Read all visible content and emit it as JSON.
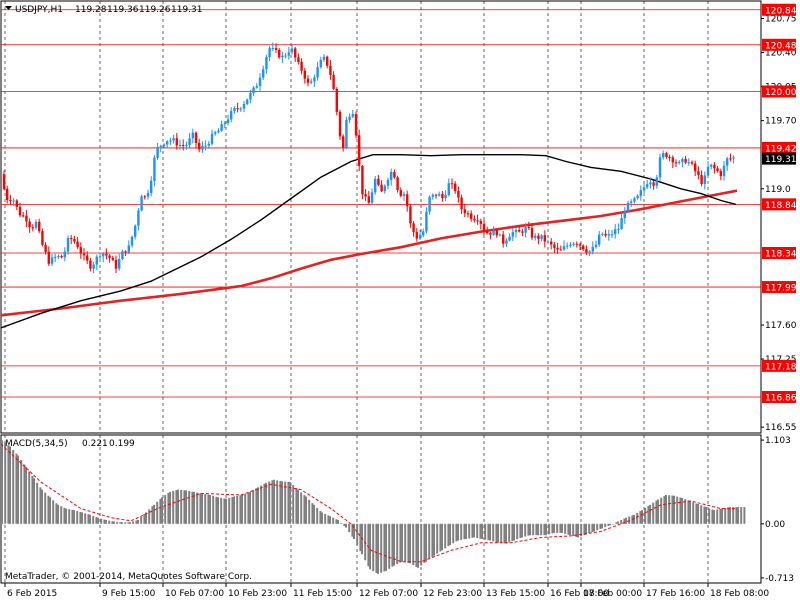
{
  "header": {
    "symbol": "USDJPY,H1",
    "open": "119.28",
    "high": "119.36",
    "low": "119.26",
    "close": "119.31"
  },
  "price_axis": {
    "ticks": [
      "120.75",
      "120.40",
      "120.05",
      "119.70",
      "119.0",
      "117.60",
      "117.25",
      "116.55"
    ],
    "level_labels": [
      "120.84",
      "120.48",
      "120.00",
      "119.42",
      "118.84",
      "118.34",
      "117.99",
      "117.18",
      "116.86"
    ],
    "current_price": "119.31",
    "range": [
      116.49,
      120.93
    ]
  },
  "time_axis": {
    "labels": [
      "6 Feb 2015",
      "9 Feb 15:00",
      "10 Feb 07:00",
      "10 Feb 23:00",
      "11 Feb 15:00",
      "12 Feb 07:00",
      "12 Feb 23:00",
      "13 Feb 15:00",
      "16 Feb 08:00",
      "17 Feb 00:00",
      "17 Feb 16:00",
      "18 Feb 08:00"
    ]
  },
  "indicator": {
    "label": "MACD(5,34,5)",
    "value1": "0.221",
    "value2": "0.199",
    "scale_labels": [
      "1.103",
      "0.00",
      "-0.713"
    ],
    "range": [
      -0.78,
      1.17
    ]
  },
  "copyright": "MetaTrader, © 2001-2014, MetaQuotes Software Corp.",
  "colors": {
    "level": "#ff0000",
    "bull": "#1e90ff",
    "bear": "#ff0000",
    "ma_fast": "#000000",
    "ma_slow": "#e52222",
    "histogram": "#808080",
    "signal": "#ff0000"
  },
  "chart_data": {
    "type": "line",
    "levels": [
      120.84,
      120.48,
      120.0,
      119.42,
      118.84,
      118.34,
      117.99,
      117.18,
      116.86
    ],
    "price_path": [
      [
        0,
        119.15
      ],
      [
        5,
        118.9
      ],
      [
        12,
        118.9
      ],
      [
        18,
        118.75
      ],
      [
        25,
        118.7
      ],
      [
        30,
        118.6
      ],
      [
        35,
        118.65
      ],
      [
        42,
        118.4
      ],
      [
        48,
        118.25
      ],
      [
        55,
        118.3
      ],
      [
        62,
        118.3
      ],
      [
        68,
        118.5
      ],
      [
        75,
        118.45
      ],
      [
        82,
        118.3
      ],
      [
        90,
        118.2
      ],
      [
        100,
        118.35
      ],
      [
        108,
        118.3
      ],
      [
        115,
        118.2
      ],
      [
        122,
        118.35
      ],
      [
        128,
        118.4
      ],
      [
        135,
        118.65
      ],
      [
        140,
        118.95
      ],
      [
        145,
        118.9
      ],
      [
        150,
        119.1
      ],
      [
        155,
        119.4
      ],
      [
        160,
        119.45
      ],
      [
        165,
        119.5
      ],
      [
        172,
        119.5
      ],
      [
        178,
        119.45
      ],
      [
        185,
        119.45
      ],
      [
        192,
        119.55
      ],
      [
        198,
        119.4
      ],
      [
        205,
        119.45
      ],
      [
        212,
        119.55
      ],
      [
        218,
        119.6
      ],
      [
        225,
        119.7
      ],
      [
        232,
        119.8
      ],
      [
        240,
        119.85
      ],
      [
        248,
        119.95
      ],
      [
        255,
        120.05
      ],
      [
        262,
        120.25
      ],
      [
        268,
        120.45
      ],
      [
        275,
        120.4
      ],
      [
        282,
        120.35
      ],
      [
        290,
        120.45
      ],
      [
        296,
        120.3
      ],
      [
        302,
        120.2
      ],
      [
        308,
        120.05
      ],
      [
        315,
        120.2
      ],
      [
        322,
        120.35
      ],
      [
        328,
        120.25
      ],
      [
        334,
        119.95
      ],
      [
        338,
        119.6
      ],
      [
        342,
        119.4
      ],
      [
        346,
        119.75
      ],
      [
        352,
        119.8
      ],
      [
        356,
        119.5
      ],
      [
        360,
        119.0
      ],
      [
        364,
        118.9
      ],
      [
        368,
        118.85
      ],
      [
        374,
        119.1
      ],
      [
        380,
        118.95
      ],
      [
        386,
        119.1
      ],
      [
        392,
        119.2
      ],
      [
        398,
        118.95
      ],
      [
        404,
        118.95
      ],
      [
        410,
        118.6
      ],
      [
        416,
        118.5
      ],
      [
        422,
        118.55
      ],
      [
        428,
        118.9
      ],
      [
        436,
        118.95
      ],
      [
        442,
        118.9
      ],
      [
        448,
        119.05
      ],
      [
        454,
        119.0
      ],
      [
        460,
        118.8
      ],
      [
        466,
        118.75
      ],
      [
        472,
        118.7
      ],
      [
        478,
        118.7
      ],
      [
        484,
        118.55
      ],
      [
        490,
        118.55
      ],
      [
        496,
        118.55
      ],
      [
        502,
        118.45
      ],
      [
        510,
        118.55
      ],
      [
        518,
        118.55
      ],
      [
        526,
        118.6
      ],
      [
        532,
        118.5
      ],
      [
        540,
        118.5
      ],
      [
        546,
        118.45
      ],
      [
        552,
        118.4
      ],
      [
        558,
        118.35
      ],
      [
        564,
        118.4
      ],
      [
        570,
        118.45
      ],
      [
        576,
        118.45
      ],
      [
        582,
        118.4
      ],
      [
        588,
        118.35
      ],
      [
        594,
        118.4
      ],
      [
        600,
        118.55
      ],
      [
        606,
        118.5
      ],
      [
        612,
        118.55
      ],
      [
        618,
        118.6
      ],
      [
        624,
        118.8
      ],
      [
        630,
        118.85
      ],
      [
        636,
        118.9
      ],
      [
        642,
        119.0
      ],
      [
        648,
        119.1
      ],
      [
        654,
        119.05
      ],
      [
        660,
        119.35
      ],
      [
        666,
        119.35
      ],
      [
        672,
        119.3
      ],
      [
        678,
        119.25
      ],
      [
        684,
        119.3
      ],
      [
        690,
        119.25
      ],
      [
        696,
        119.15
      ],
      [
        702,
        119.05
      ],
      [
        708,
        119.25
      ],
      [
        714,
        119.2
      ],
      [
        720,
        119.15
      ],
      [
        726,
        119.3
      ],
      [
        732,
        119.32
      ],
      [
        736,
        119.31
      ]
    ],
    "ma_fast": [
      [
        0,
        117.57
      ],
      [
        40,
        117.72
      ],
      [
        80,
        117.85
      ],
      [
        120,
        117.95
      ],
      [
        150,
        118.05
      ],
      [
        170,
        118.15
      ],
      [
        200,
        118.3
      ],
      [
        230,
        118.48
      ],
      [
        260,
        118.68
      ],
      [
        290,
        118.9
      ],
      [
        320,
        119.12
      ],
      [
        350,
        119.28
      ],
      [
        372,
        119.35
      ],
      [
        400,
        119.35
      ],
      [
        430,
        119.34
      ],
      [
        460,
        119.35
      ],
      [
        490,
        119.35
      ],
      [
        520,
        119.35
      ],
      [
        545,
        119.34
      ],
      [
        565,
        119.28
      ],
      [
        590,
        119.22
      ],
      [
        620,
        119.18
      ],
      [
        650,
        119.1
      ],
      [
        680,
        119.0
      ],
      [
        700,
        118.95
      ],
      [
        720,
        118.88
      ],
      [
        735,
        118.84
      ]
    ],
    "ma_slow": [
      [
        0,
        117.7
      ],
      [
        60,
        117.77
      ],
      [
        120,
        117.85
      ],
      [
        180,
        117.92
      ],
      [
        240,
        118.0
      ],
      [
        270,
        118.08
      ],
      [
        300,
        118.18
      ],
      [
        330,
        118.27
      ],
      [
        360,
        118.33
      ],
      [
        400,
        118.4
      ],
      [
        440,
        118.49
      ],
      [
        480,
        118.56
      ],
      [
        520,
        118.62
      ],
      [
        560,
        118.67
      ],
      [
        600,
        118.72
      ],
      [
        640,
        118.79
      ],
      [
        680,
        118.87
      ],
      [
        710,
        118.93
      ],
      [
        736,
        118.98
      ]
    ],
    "macd_histogram": [
      [
        0,
        1.1
      ],
      [
        8,
        1.02
      ],
      [
        16,
        0.9
      ],
      [
        24,
        0.75
      ],
      [
        32,
        0.6
      ],
      [
        40,
        0.45
      ],
      [
        48,
        0.35
      ],
      [
        56,
        0.25
      ],
      [
        64,
        0.2
      ],
      [
        72,
        0.18
      ],
      [
        80,
        0.15
      ],
      [
        88,
        0.12
      ],
      [
        96,
        0.08
      ],
      [
        104,
        0.05
      ],
      [
        112,
        0.03
      ],
      [
        120,
        0.02
      ],
      [
        128,
        0.02
      ],
      [
        136,
        0.05
      ],
      [
        144,
        0.15
      ],
      [
        152,
        0.25
      ],
      [
        160,
        0.35
      ],
      [
        168,
        0.42
      ],
      [
        176,
        0.45
      ],
      [
        184,
        0.44
      ],
      [
        192,
        0.42
      ],
      [
        200,
        0.4
      ],
      [
        208,
        0.38
      ],
      [
        216,
        0.35
      ],
      [
        224,
        0.33
      ],
      [
        232,
        0.36
      ],
      [
        240,
        0.38
      ],
      [
        248,
        0.42
      ],
      [
        256,
        0.48
      ],
      [
        264,
        0.54
      ],
      [
        272,
        0.58
      ],
      [
        280,
        0.56
      ],
      [
        288,
        0.55
      ],
      [
        296,
        0.45
      ],
      [
        304,
        0.36
      ],
      [
        312,
        0.25
      ],
      [
        320,
        0.15
      ],
      [
        328,
        0.1
      ],
      [
        336,
        0.05
      ],
      [
        344,
        -0.05
      ],
      [
        352,
        -0.2
      ],
      [
        360,
        -0.4
      ],
      [
        368,
        -0.6
      ],
      [
        376,
        -0.66
      ],
      [
        384,
        -0.62
      ],
      [
        392,
        -0.55
      ],
      [
        400,
        -0.5
      ],
      [
        408,
        -0.52
      ],
      [
        416,
        -0.58
      ],
      [
        424,
        -0.5
      ],
      [
        432,
        -0.42
      ],
      [
        440,
        -0.35
      ],
      [
        448,
        -0.28
      ],
      [
        456,
        -0.22
      ],
      [
        464,
        -0.2
      ],
      [
        472,
        -0.18
      ],
      [
        480,
        -0.2
      ],
      [
        488,
        -0.22
      ],
      [
        496,
        -0.25
      ],
      [
        504,
        -0.26
      ],
      [
        512,
        -0.22
      ],
      [
        520,
        -0.18
      ],
      [
        528,
        -0.15
      ],
      [
        536,
        -0.15
      ],
      [
        544,
        -0.15
      ],
      [
        552,
        -0.12
      ],
      [
        560,
        -0.12
      ],
      [
        568,
        -0.15
      ],
      [
        576,
        -0.18
      ],
      [
        584,
        -0.14
      ],
      [
        592,
        -0.1
      ],
      [
        600,
        -0.06
      ],
      [
        608,
        -0.02
      ],
      [
        616,
        0.03
      ],
      [
        624,
        0.08
      ],
      [
        632,
        0.12
      ],
      [
        640,
        0.18
      ],
      [
        648,
        0.25
      ],
      [
        656,
        0.32
      ],
      [
        664,
        0.38
      ],
      [
        672,
        0.37
      ],
      [
        680,
        0.34
      ],
      [
        688,
        0.3
      ],
      [
        696,
        0.26
      ],
      [
        704,
        0.22
      ],
      [
        712,
        0.18
      ],
      [
        720,
        0.2
      ],
      [
        728,
        0.22
      ],
      [
        736,
        0.22
      ]
    ],
    "macd_signal": [
      [
        0,
        1.05
      ],
      [
        40,
        0.55
      ],
      [
        80,
        0.2
      ],
      [
        110,
        0.08
      ],
      [
        130,
        0.04
      ],
      [
        160,
        0.22
      ],
      [
        200,
        0.4
      ],
      [
        240,
        0.38
      ],
      [
        270,
        0.52
      ],
      [
        300,
        0.45
      ],
      [
        330,
        0.2
      ],
      [
        350,
        0.0
      ],
      [
        370,
        -0.35
      ],
      [
        400,
        -0.5
      ],
      [
        420,
        -0.5
      ],
      [
        450,
        -0.35
      ],
      [
        480,
        -0.25
      ],
      [
        510,
        -0.25
      ],
      [
        540,
        -0.18
      ],
      [
        570,
        -0.16
      ],
      [
        600,
        -0.1
      ],
      [
        630,
        0.05
      ],
      [
        660,
        0.25
      ],
      [
        690,
        0.3
      ],
      [
        720,
        0.2
      ],
      [
        736,
        0.2
      ]
    ]
  }
}
